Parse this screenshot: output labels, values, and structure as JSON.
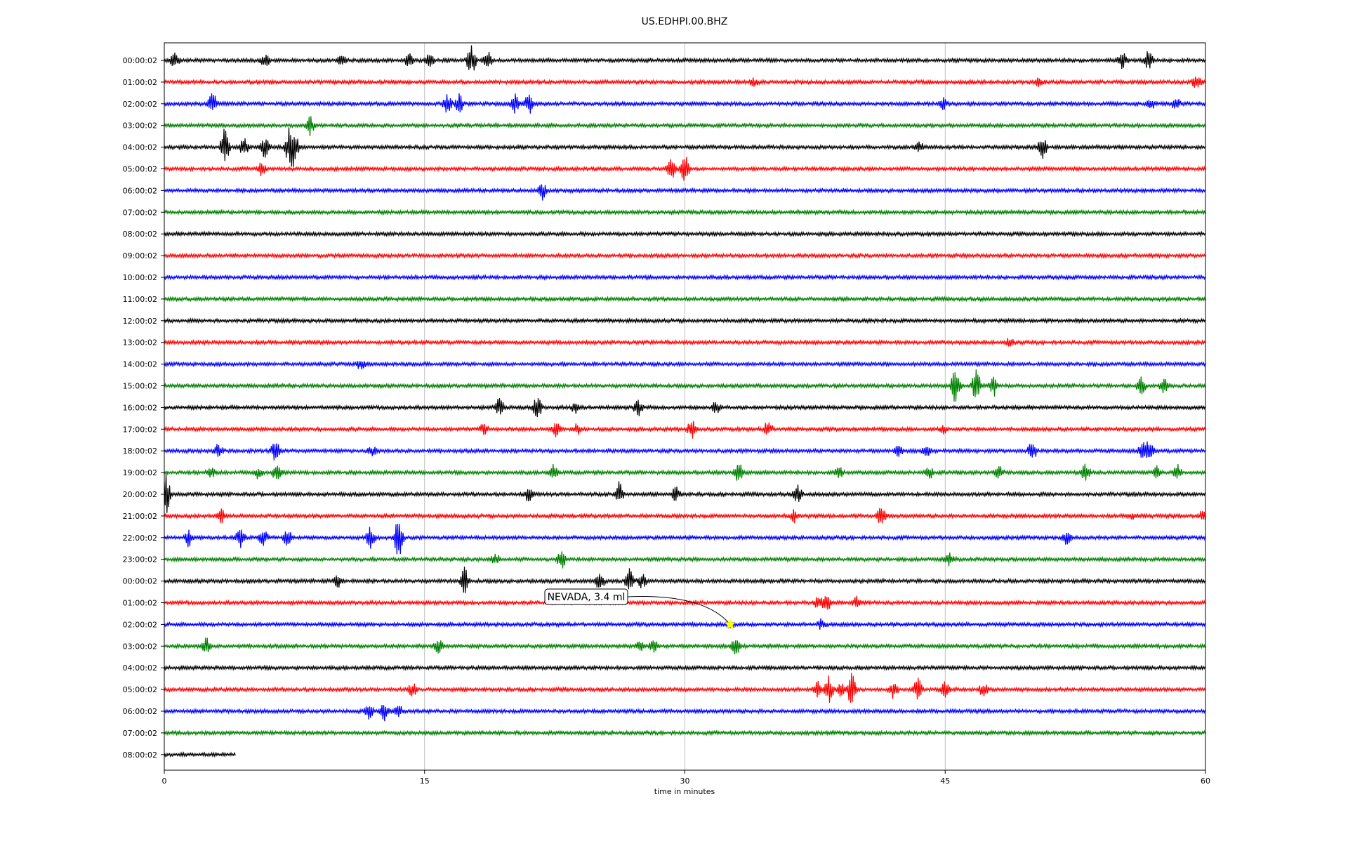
{
  "chart_data": {
    "type": "line",
    "title": "US.EDHPI.00.BHZ",
    "xlabel": "time in minutes",
    "ylabel": "",
    "xlim": [
      0,
      60
    ],
    "x_ticks": [
      0,
      15,
      30,
      45,
      60
    ],
    "grid": "vertical lines at x ticks",
    "colors": [
      "#000000",
      "#ff0000",
      "#0000ff",
      "#008000"
    ],
    "rows": [
      "00:00:02",
      "01:00:02",
      "02:00:02",
      "03:00:02",
      "04:00:02",
      "05:00:02",
      "06:00:02",
      "07:00:02",
      "08:00:02",
      "09:00:02",
      "10:00:02",
      "11:00:02",
      "12:00:02",
      "13:00:02",
      "14:00:02",
      "15:00:02",
      "16:00:02",
      "17:00:02",
      "18:00:02",
      "19:00:02",
      "20:00:02",
      "21:00:02",
      "22:00:02",
      "23:00:02",
      "00:00:02",
      "01:00:02",
      "02:00:02",
      "03:00:02",
      "04:00:02",
      "05:00:02",
      "06:00:02",
      "07:00:02",
      "08:00:02"
    ],
    "last_row_end_minute": 4.1,
    "events": [
      {
        "row": 0,
        "at": [
          0.6,
          5.8,
          10.2,
          14.1,
          15.3,
          17.7,
          18.6,
          55.2,
          56.7
        ],
        "amp": [
          0.4,
          0.35,
          0.3,
          0.4,
          0.35,
          0.9,
          0.6,
          0.5,
          0.5
        ]
      },
      {
        "row": 1,
        "at": [
          34.0,
          50.4,
          59.5
        ],
        "amp": [
          0.2,
          0.2,
          0.4
        ]
      },
      {
        "row": 2,
        "at": [
          2.8,
          16.3,
          17.0,
          20.2,
          21.0,
          44.9,
          56.9,
          58.3
        ],
        "amp": [
          0.6,
          0.5,
          0.5,
          0.5,
          0.6,
          0.3,
          0.3,
          0.3
        ]
      },
      {
        "row": 3,
        "at": [
          8.4
        ],
        "amp": [
          0.5
        ]
      },
      {
        "row": 4,
        "at": [
          3.5,
          4.6,
          5.8,
          7.2,
          7.5,
          43.5,
          50.6
        ],
        "amp": [
          1.1,
          0.5,
          0.6,
          1.0,
          0.8,
          0.25,
          0.6
        ]
      },
      {
        "row": 5,
        "at": [
          5.6,
          29.2,
          30.0
        ],
        "amp": [
          0.35,
          0.9,
          0.8
        ]
      },
      {
        "row": 6,
        "at": [
          21.8
        ],
        "amp": [
          0.45
        ]
      },
      {
        "row": 13,
        "at": [
          48.7
        ],
        "amp": [
          0.2
        ]
      },
      {
        "row": 14,
        "at": [
          11.3
        ],
        "amp": [
          0.3
        ]
      },
      {
        "row": 15,
        "at": [
          45.6,
          46.8,
          47.8,
          56.3,
          57.6
        ],
        "amp": [
          1.0,
          0.9,
          0.6,
          0.5,
          0.4
        ]
      },
      {
        "row": 16,
        "at": [
          19.3,
          21.5,
          23.7,
          27.3,
          31.8
        ],
        "amp": [
          0.5,
          0.7,
          0.3,
          0.5,
          0.3
        ]
      },
      {
        "row": 17,
        "at": [
          18.4,
          22.6,
          23.8,
          30.4,
          34.8,
          44.9
        ],
        "amp": [
          0.3,
          0.4,
          0.3,
          0.5,
          0.45,
          0.2
        ]
      },
      {
        "row": 18,
        "at": [
          3.1,
          6.4,
          12.0,
          42.3,
          43.9,
          50.0,
          56.4,
          56.8
        ],
        "amp": [
          0.4,
          0.6,
          0.25,
          0.3,
          0.3,
          0.6,
          0.5,
          0.5
        ]
      },
      {
        "row": 19,
        "at": [
          2.7,
          5.4,
          6.5,
          22.4,
          33.1,
          38.9,
          44.1,
          48.1,
          53.1,
          57.2,
          58.4
        ],
        "amp": [
          0.35,
          0.3,
          0.5,
          0.4,
          0.6,
          0.3,
          0.35,
          0.5,
          0.5,
          0.3,
          0.4
        ]
      },
      {
        "row": 20,
        "at": [
          0.1,
          21.0,
          26.2,
          29.5,
          36.5
        ],
        "amp": [
          1.1,
          0.4,
          0.65,
          0.4,
          0.5
        ]
      },
      {
        "row": 21,
        "at": [
          3.3,
          36.3,
          41.3,
          55.8,
          59.9
        ],
        "amp": [
          0.45,
          0.3,
          0.6,
          0.2,
          0.4
        ]
      },
      {
        "row": 22,
        "at": [
          1.4,
          4.4,
          5.7,
          7.1,
          11.9,
          13.5,
          52.0
        ],
        "amp": [
          0.5,
          0.6,
          0.5,
          0.45,
          0.6,
          1.2,
          0.35
        ]
      },
      {
        "row": 23,
        "at": [
          19.1,
          22.9,
          45.2
        ],
        "amp": [
          0.3,
          0.55,
          0.35
        ]
      },
      {
        "row": 24,
        "at": [
          10.0,
          17.3,
          25.1,
          26.8,
          27.5
        ],
        "amp": [
          0.35,
          0.7,
          0.5,
          0.65,
          0.45
        ]
      },
      {
        "row": 25,
        "at": [
          37.7,
          38.2,
          39.9
        ],
        "amp": [
          0.35,
          0.4,
          0.3
        ]
      },
      {
        "row": 26,
        "at": [
          32.6,
          37.9
        ],
        "amp": [
          0.3,
          0.3
        ]
      },
      {
        "row": 27,
        "at": [
          2.4,
          15.8,
          27.4,
          28.2,
          32.9
        ],
        "amp": [
          0.5,
          0.4,
          0.3,
          0.35,
          0.55
        ]
      },
      {
        "row": 29,
        "at": [
          14.3,
          37.6,
          38.3,
          39.0,
          39.6,
          42.0,
          43.4,
          45.0,
          47.2
        ],
        "amp": [
          0.35,
          0.5,
          0.7,
          0.5,
          0.9,
          0.5,
          0.7,
          0.4,
          0.4
        ]
      },
      {
        "row": 30,
        "at": [
          11.8,
          12.7,
          13.5
        ],
        "amp": [
          0.4,
          0.55,
          0.3
        ]
      }
    ],
    "annotation": {
      "text": "NEVADA, 3.4 ml",
      "row": 26,
      "minute": 32.6,
      "marker": "star",
      "marker_color": "#ffff00"
    }
  }
}
